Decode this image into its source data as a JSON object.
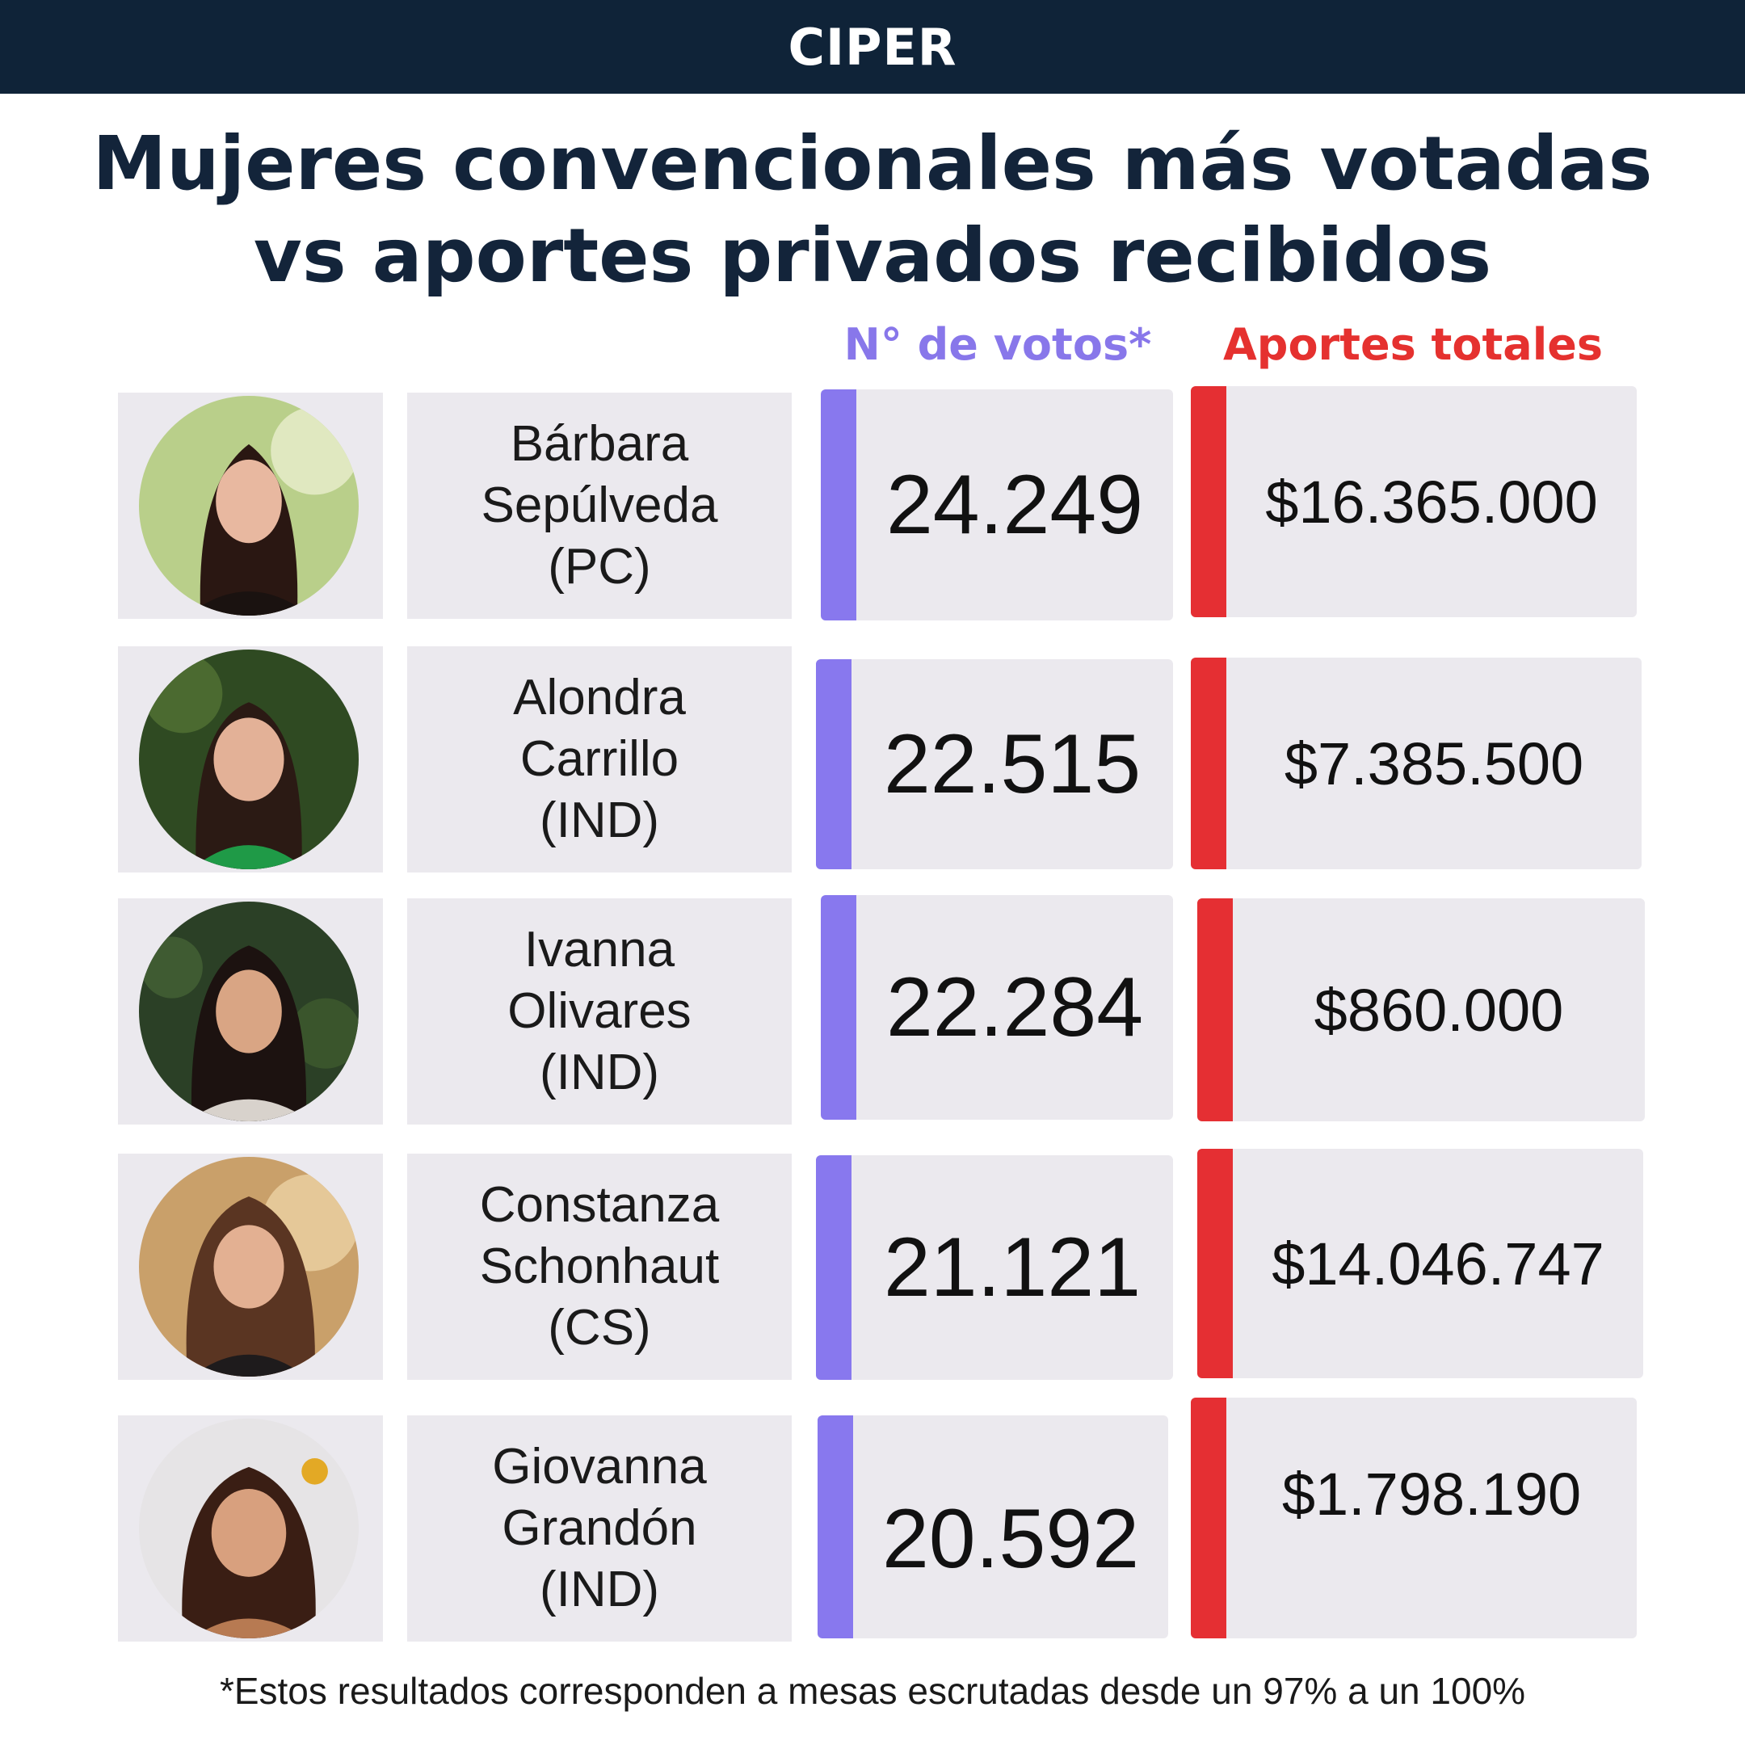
{
  "brand": "CIPER",
  "title": {
    "line1": "Mujeres convencionales más votadas",
    "line2": "vs aportes privados recibidos"
  },
  "columns": {
    "votes": "N° de votos*",
    "funds": "Aportes totales"
  },
  "colors": {
    "header_bg": "#0f2338",
    "title": "#13243a",
    "votes_accent": "#8878ee",
    "funds_accent": "#e52f33",
    "cell_bg": "#ebe9ee"
  },
  "rows": [
    {
      "name_lines": [
        "Bárbara",
        "Sepúlveda",
        "(PC)"
      ],
      "votes": "24.249",
      "funds": "$16.365.000",
      "photo": "portrait-photo"
    },
    {
      "name_lines": [
        "Alondra",
        "Carrillo",
        "(IND)"
      ],
      "votes": "22.515",
      "funds": "$7.385.500",
      "photo": "portrait-photo"
    },
    {
      "name_lines": [
        "Ivanna",
        "Olivares",
        "(IND)"
      ],
      "votes": "22.284",
      "funds": "$860.000",
      "photo": "portrait-photo"
    },
    {
      "name_lines": [
        "Constanza",
        "Schonhaut",
        "(CS)"
      ],
      "votes": "21.121",
      "funds": "$14.046.747",
      "photo": "portrait-photo"
    },
    {
      "name_lines": [
        "Giovanna",
        "Grandón",
        "(IND)"
      ],
      "votes": "20.592",
      "funds": "$1.798.190",
      "photo": "portrait-photo"
    }
  ],
  "footnote": "*Estos resultados corresponden a mesas escrutadas desde un 97% a un 100%"
}
